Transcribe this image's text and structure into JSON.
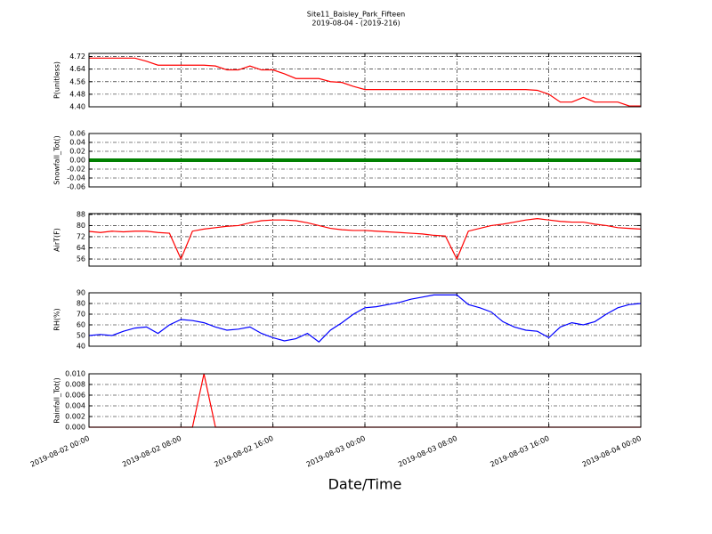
{
  "chart_data": [
    {
      "type": "line",
      "title": "Site11_Baisley_Park_Fifteen",
      "subtitle": "2019-08-04 - (2019-216)",
      "ylabel": "P(unitless)",
      "color": "#ff0000",
      "x": [
        "2019-08-02 00:00",
        "2019-08-02 01:00",
        "2019-08-02 02:00",
        "2019-08-02 03:00",
        "2019-08-02 04:00",
        "2019-08-02 05:00",
        "2019-08-02 06:00",
        "2019-08-02 07:00",
        "2019-08-02 08:00",
        "2019-08-02 09:00",
        "2019-08-02 10:00",
        "2019-08-02 11:00",
        "2019-08-02 12:00",
        "2019-08-02 13:00",
        "2019-08-02 14:00",
        "2019-08-02 15:00",
        "2019-08-02 16:00",
        "2019-08-02 17:00",
        "2019-08-02 18:00",
        "2019-08-02 19:00",
        "2019-08-02 20:00",
        "2019-08-02 21:00",
        "2019-08-02 22:00",
        "2019-08-02 23:00",
        "2019-08-03 00:00",
        "2019-08-03 01:00",
        "2019-08-03 02:00",
        "2019-08-03 03:00",
        "2019-08-03 04:00",
        "2019-08-03 05:00",
        "2019-08-03 06:00",
        "2019-08-03 07:00",
        "2019-08-03 08:00",
        "2019-08-03 09:00",
        "2019-08-03 10:00",
        "2019-08-03 11:00",
        "2019-08-03 12:00",
        "2019-08-03 13:00",
        "2019-08-03 14:00",
        "2019-08-03 15:00",
        "2019-08-03 16:00",
        "2019-08-03 17:00",
        "2019-08-03 18:00",
        "2019-08-03 19:00",
        "2019-08-03 20:00",
        "2019-08-03 21:00",
        "2019-08-03 22:00",
        "2019-08-03 23:00",
        "2019-08-04 00:00"
      ],
      "values": [
        4.71,
        4.71,
        4.71,
        4.71,
        4.71,
        4.69,
        4.665,
        4.665,
        4.665,
        4.665,
        4.665,
        4.66,
        4.635,
        4.635,
        4.66,
        4.635,
        4.635,
        4.61,
        4.58,
        4.58,
        4.58,
        4.56,
        4.555,
        4.53,
        4.51,
        4.51,
        4.51,
        4.51,
        4.51,
        4.51,
        4.51,
        4.51,
        4.51,
        4.51,
        4.51,
        4.51,
        4.51,
        4.51,
        4.51,
        4.505,
        4.48,
        4.43,
        4.43,
        4.46,
        4.43,
        4.43,
        4.43,
        4.405,
        4.405
      ],
      "ylim": [
        4.4,
        4.74
      ],
      "yticks": [
        {
          "value": 4.4,
          "label": "4.40"
        },
        {
          "value": 4.48,
          "label": "4.48"
        },
        {
          "value": 4.56,
          "label": "4.56"
        },
        {
          "value": 4.64,
          "label": "4.64"
        },
        {
          "value": 4.72,
          "label": "4.72"
        }
      ],
      "xlim": [
        "2019-08-02 00:00",
        "2019-08-04 00:00"
      ],
      "xticks": [
        "2019-08-02 00:00",
        "2019-08-02 08:00",
        "2019-08-02 16:00",
        "2019-08-03 00:00",
        "2019-08-03 08:00",
        "2019-08-03 16:00",
        "2019-08-04 00:00"
      ],
      "grid": true
    },
    {
      "type": "line",
      "ylabel": "Snowfall_Tot()",
      "color": "#008000",
      "x": [
        "2019-08-02 00:00",
        "2019-08-02 01:00",
        "2019-08-02 02:00",
        "2019-08-02 03:00",
        "2019-08-02 04:00",
        "2019-08-02 05:00",
        "2019-08-02 06:00",
        "2019-08-02 07:00",
        "2019-08-02 08:00",
        "2019-08-02 09:00",
        "2019-08-02 10:00",
        "2019-08-02 11:00",
        "2019-08-02 12:00",
        "2019-08-02 13:00",
        "2019-08-02 14:00",
        "2019-08-02 15:00",
        "2019-08-02 16:00",
        "2019-08-02 17:00",
        "2019-08-02 18:00",
        "2019-08-02 19:00",
        "2019-08-02 20:00",
        "2019-08-02 21:00",
        "2019-08-02 22:00",
        "2019-08-02 23:00",
        "2019-08-03 00:00",
        "2019-08-03 01:00",
        "2019-08-03 02:00",
        "2019-08-03 03:00",
        "2019-08-03 04:00",
        "2019-08-03 05:00",
        "2019-08-03 06:00",
        "2019-08-03 07:00",
        "2019-08-03 08:00",
        "2019-08-03 09:00",
        "2019-08-03 10:00",
        "2019-08-03 11:00",
        "2019-08-03 12:00",
        "2019-08-03 13:00",
        "2019-08-03 14:00",
        "2019-08-03 15:00",
        "2019-08-03 16:00",
        "2019-08-03 17:00",
        "2019-08-03 18:00",
        "2019-08-03 19:00",
        "2019-08-03 20:00",
        "2019-08-03 21:00",
        "2019-08-03 22:00",
        "2019-08-03 23:00",
        "2019-08-04 00:00"
      ],
      "values": [
        0,
        0,
        0,
        0,
        0,
        0,
        0,
        0,
        0,
        0,
        0,
        0,
        0,
        0,
        0,
        0,
        0,
        0,
        0,
        0,
        0,
        0,
        0,
        0,
        0,
        0,
        0,
        0,
        0,
        0,
        0,
        0,
        0,
        0,
        0,
        0,
        0,
        0,
        0,
        0,
        0,
        0,
        0,
        0,
        0,
        0,
        0,
        0,
        0
      ],
      "ylim": [
        -0.06,
        0.06
      ],
      "yticks": [
        -0.06,
        -0.04,
        -0.02,
        {
          "value": 0,
          "label": "0.00"
        },
        0.02,
        0.04,
        0.06
      ],
      "xlim": [
        "2019-08-02 00:00",
        "2019-08-04 00:00"
      ],
      "xticks": [
        "2019-08-02 00:00",
        "2019-08-02 08:00",
        "2019-08-02 16:00",
        "2019-08-03 00:00",
        "2019-08-03 08:00",
        "2019-08-03 16:00",
        "2019-08-04 00:00"
      ],
      "grid": true
    },
    {
      "type": "line",
      "ylabel": "AirT(F)",
      "color": "#ff0000",
      "x": [
        "2019-08-02 00:00",
        "2019-08-02 01:00",
        "2019-08-02 02:00",
        "2019-08-02 03:00",
        "2019-08-02 04:00",
        "2019-08-02 05:00",
        "2019-08-02 06:00",
        "2019-08-02 07:00",
        "2019-08-02 08:00",
        "2019-08-02 09:00",
        "2019-08-02 10:00",
        "2019-08-02 11:00",
        "2019-08-02 12:00",
        "2019-08-02 13:00",
        "2019-08-02 14:00",
        "2019-08-02 15:00",
        "2019-08-02 16:00",
        "2019-08-02 17:00",
        "2019-08-02 18:00",
        "2019-08-02 19:00",
        "2019-08-02 20:00",
        "2019-08-02 21:00",
        "2019-08-02 22:00",
        "2019-08-02 23:00",
        "2019-08-03 00:00",
        "2019-08-03 01:00",
        "2019-08-03 02:00",
        "2019-08-03 03:00",
        "2019-08-03 04:00",
        "2019-08-03 05:00",
        "2019-08-03 06:00",
        "2019-08-03 07:00",
        "2019-08-03 08:00",
        "2019-08-03 09:00",
        "2019-08-03 10:00",
        "2019-08-03 11:00",
        "2019-08-03 12:00",
        "2019-08-03 13:00",
        "2019-08-03 14:00",
        "2019-08-03 15:00",
        "2019-08-03 16:00",
        "2019-08-03 17:00",
        "2019-08-03 18:00",
        "2019-08-03 19:00",
        "2019-08-03 20:00",
        "2019-08-03 21:00",
        "2019-08-03 22:00",
        "2019-08-03 23:00",
        "2019-08-04 00:00"
      ],
      "values": [
        75.8,
        75,
        76,
        75.5,
        76,
        76,
        75,
        74.5,
        56,
        76,
        77.5,
        78.5,
        79.5,
        80,
        82,
        83.5,
        84,
        84,
        83.5,
        82,
        80,
        78,
        77,
        76.5,
        76.5,
        76,
        75.5,
        75,
        74.5,
        74,
        73,
        72.5,
        56,
        76,
        78,
        80,
        81,
        82.5,
        84,
        85,
        84,
        83,
        82.5,
        82.5,
        81,
        80,
        78.5,
        78,
        77.5
      ],
      "ylim": [
        50.9,
        88.6
      ],
      "yticks": [
        56,
        64,
        72,
        80,
        88
      ],
      "xlim": [
        "2019-08-02 00:00",
        "2019-08-04 00:00"
      ],
      "xticks": [
        "2019-08-02 00:00",
        "2019-08-02 08:00",
        "2019-08-02 16:00",
        "2019-08-03 00:00",
        "2019-08-03 08:00",
        "2019-08-03 16:00",
        "2019-08-04 00:00"
      ],
      "grid": true
    },
    {
      "type": "line",
      "ylabel": "RH(%)",
      "color": "#0000ff",
      "x": [
        "2019-08-02 00:00",
        "2019-08-02 01:00",
        "2019-08-02 02:00",
        "2019-08-02 03:00",
        "2019-08-02 04:00",
        "2019-08-02 05:00",
        "2019-08-02 06:00",
        "2019-08-02 07:00",
        "2019-08-02 08:00",
        "2019-08-02 09:00",
        "2019-08-02 10:00",
        "2019-08-02 11:00",
        "2019-08-02 12:00",
        "2019-08-02 13:00",
        "2019-08-02 14:00",
        "2019-08-02 15:00",
        "2019-08-02 16:00",
        "2019-08-02 17:00",
        "2019-08-02 18:00",
        "2019-08-02 19:00",
        "2019-08-02 20:00",
        "2019-08-02 21:00",
        "2019-08-02 22:00",
        "2019-08-02 23:00",
        "2019-08-03 00:00",
        "2019-08-03 01:00",
        "2019-08-03 02:00",
        "2019-08-03 03:00",
        "2019-08-03 04:00",
        "2019-08-03 05:00",
        "2019-08-03 06:00",
        "2019-08-03 07:00",
        "2019-08-03 08:00",
        "2019-08-03 09:00",
        "2019-08-03 10:00",
        "2019-08-03 11:00",
        "2019-08-03 12:00",
        "2019-08-03 13:00",
        "2019-08-03 14:00",
        "2019-08-03 15:00",
        "2019-08-03 16:00",
        "2019-08-03 17:00",
        "2019-08-03 18:00",
        "2019-08-03 19:00",
        "2019-08-03 20:00",
        "2019-08-03 21:00",
        "2019-08-03 22:00",
        "2019-08-03 23:00",
        "2019-08-04 00:00"
      ],
      "values": [
        50,
        51,
        50,
        54,
        57,
        58,
        52,
        60,
        65,
        64,
        62,
        58,
        55,
        56,
        58,
        52,
        48,
        45,
        47,
        52,
        44,
        55,
        62,
        70,
        76,
        77,
        79,
        81,
        84,
        86,
        88,
        88,
        88,
        79,
        76,
        72,
        63,
        58,
        55,
        54,
        48,
        58,
        62,
        60,
        63,
        70,
        76,
        79,
        80
      ],
      "ylim": [
        40,
        90
      ],
      "yticks": [
        40,
        50,
        60,
        70,
        80,
        90
      ],
      "xlim": [
        "2019-08-02 00:00",
        "2019-08-04 00:00"
      ],
      "xticks": [
        "2019-08-02 00:00",
        "2019-08-02 08:00",
        "2019-08-02 16:00",
        "2019-08-03 00:00",
        "2019-08-03 08:00",
        "2019-08-03 16:00",
        "2019-08-04 00:00"
      ],
      "grid": true
    },
    {
      "type": "line",
      "ylabel": "Rainfall_Tot()",
      "xlabel": "Date/Time",
      "color": "#ff0000",
      "x": [
        "2019-08-02 00:00",
        "2019-08-02 01:00",
        "2019-08-02 02:00",
        "2019-08-02 03:00",
        "2019-08-02 04:00",
        "2019-08-02 05:00",
        "2019-08-02 06:00",
        "2019-08-02 07:00",
        "2019-08-02 08:00",
        "2019-08-02 09:00",
        "2019-08-02 10:00",
        "2019-08-02 11:00",
        "2019-08-02 12:00",
        "2019-08-02 13:00",
        "2019-08-02 14:00",
        "2019-08-02 15:00",
        "2019-08-02 16:00",
        "2019-08-02 17:00",
        "2019-08-02 18:00",
        "2019-08-02 19:00",
        "2019-08-02 20:00",
        "2019-08-02 21:00",
        "2019-08-02 22:00",
        "2019-08-02 23:00",
        "2019-08-03 00:00",
        "2019-08-03 01:00",
        "2019-08-03 02:00",
        "2019-08-03 03:00",
        "2019-08-03 04:00",
        "2019-08-03 05:00",
        "2019-08-03 06:00",
        "2019-08-03 07:00",
        "2019-08-03 08:00",
        "2019-08-03 09:00",
        "2019-08-03 10:00",
        "2019-08-03 11:00",
        "2019-08-03 12:00",
        "2019-08-03 13:00",
        "2019-08-03 14:00",
        "2019-08-03 15:00",
        "2019-08-03 16:00",
        "2019-08-03 17:00",
        "2019-08-03 18:00",
        "2019-08-03 19:00",
        "2019-08-03 20:00",
        "2019-08-03 21:00",
        "2019-08-03 22:00",
        "2019-08-03 23:00",
        "2019-08-04 00:00"
      ],
      "values": [
        0,
        0,
        0,
        0,
        0,
        0,
        0,
        0,
        0,
        0,
        0.01,
        0,
        0,
        0,
        0,
        0,
        0,
        0,
        0,
        0,
        0,
        0,
        0,
        0,
        0,
        0,
        0,
        0,
        0,
        0,
        0,
        0,
        0,
        0,
        0,
        0,
        0,
        0,
        0,
        0,
        0,
        0,
        0,
        0,
        0,
        0,
        0,
        0,
        0
      ],
      "ylim": [
        0,
        0.01
      ],
      "yticks": [
        {
          "value": 0,
          "label": "0.000"
        },
        {
          "value": 0.002,
          "label": "0.002"
        },
        {
          "value": 0.004,
          "label": "0.004"
        },
        {
          "value": 0.006,
          "label": "0.006"
        },
        {
          "value": 0.008,
          "label": "0.008"
        },
        {
          "value": 0.01,
          "label": "0.010"
        }
      ],
      "xlim": [
        "2019-08-02 00:00",
        "2019-08-04 00:00"
      ],
      "xticks": [
        "2019-08-02 00:00",
        "2019-08-02 08:00",
        "2019-08-02 16:00",
        "2019-08-03 00:00",
        "2019-08-03 08:00",
        "2019-08-03 16:00",
        "2019-08-04 00:00"
      ],
      "grid": true
    }
  ]
}
